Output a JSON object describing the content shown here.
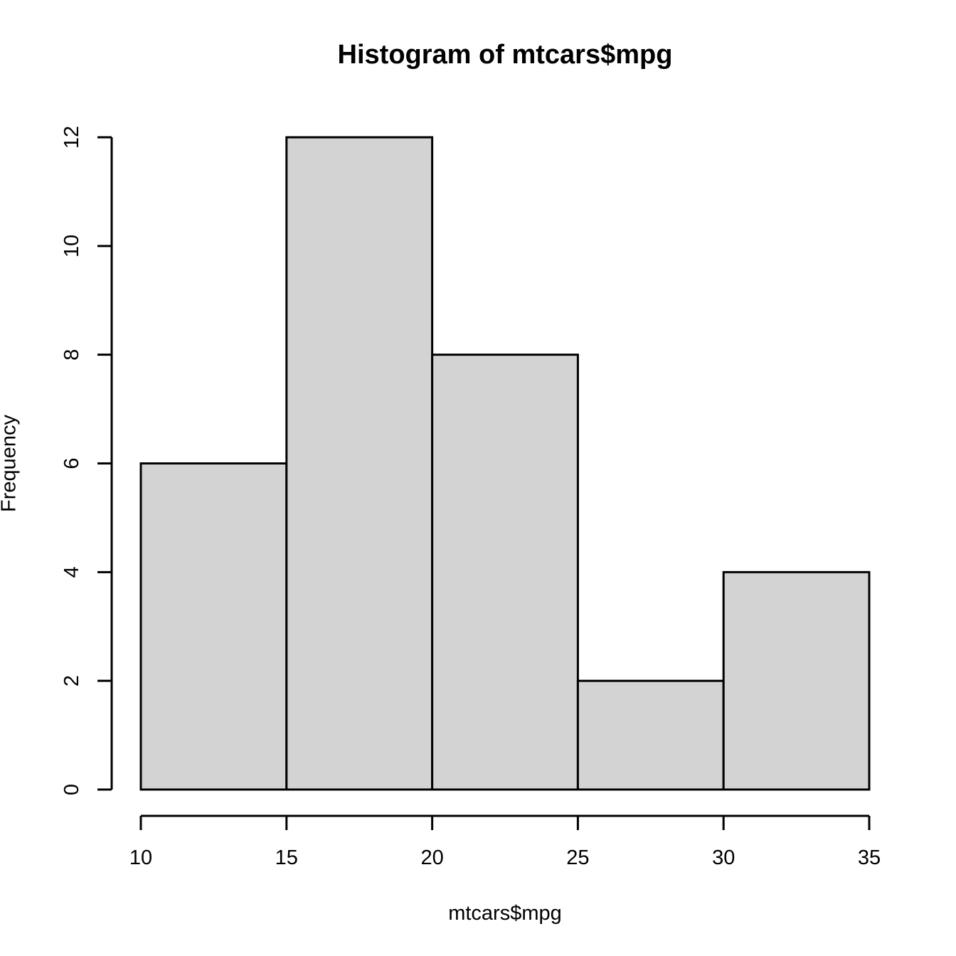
{
  "chart_data": {
    "type": "bar",
    "subtype": "histogram",
    "title": "Histogram of mtcars$mpg",
    "xlabel": "mtcars$mpg",
    "ylabel": "Frequency",
    "breaks": [
      10,
      15,
      20,
      25,
      30,
      35
    ],
    "counts": [
      6,
      12,
      8,
      2,
      4
    ],
    "x_ticks": [
      10,
      15,
      20,
      25,
      30,
      35
    ],
    "y_ticks": [
      0,
      2,
      4,
      6,
      8,
      10,
      12
    ],
    "xlim": [
      10,
      35
    ],
    "ylim": [
      0,
      12
    ],
    "grid": "off",
    "legend": "none",
    "colors": {
      "bar_fill": "#d3d3d3",
      "bar_stroke": "#000000",
      "axis": "#000000",
      "text": "#000000",
      "background": "#ffffff"
    }
  }
}
